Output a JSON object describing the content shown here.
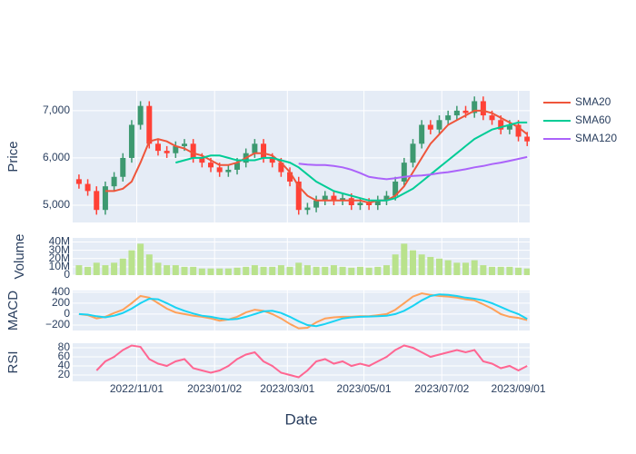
{
  "chart_data": [
    {
      "type": "candlestick",
      "ylabel": "Price",
      "x": [
        "2022-09-16",
        "2022-09-23",
        "2022-09-30",
        "2022-10-07",
        "2022-10-14",
        "2022-10-21",
        "2022-10-28",
        "2022-11-04",
        "2022-11-11",
        "2022-11-18",
        "2022-11-25",
        "2022-12-02",
        "2022-12-09",
        "2022-12-16",
        "2022-12-23",
        "2022-12-30",
        "2023-01-06",
        "2023-01-13",
        "2023-01-20",
        "2023-01-27",
        "2023-02-03",
        "2023-02-10",
        "2023-02-17",
        "2023-02-24",
        "2023-03-03",
        "2023-03-10",
        "2023-03-17",
        "2023-03-24",
        "2023-03-31",
        "2023-04-07",
        "2023-04-14",
        "2023-04-21",
        "2023-04-28",
        "2023-05-05",
        "2023-05-12",
        "2023-05-19",
        "2023-05-26",
        "2023-06-02",
        "2023-06-09",
        "2023-06-16",
        "2023-06-23",
        "2023-06-30",
        "2023-07-07",
        "2023-07-14",
        "2023-07-21",
        "2023-07-28",
        "2023-08-04",
        "2023-08-11",
        "2023-08-18",
        "2023-08-25",
        "2023-09-01",
        "2023-09-08"
      ],
      "open": [
        5550,
        5450,
        5300,
        4900,
        5400,
        5600,
        6000,
        6700,
        7100,
        6300,
        6150,
        6100,
        6250,
        6300,
        6000,
        5900,
        5800,
        5700,
        5750,
        5900,
        6100,
        6300,
        6000,
        5900,
        5700,
        5500,
        4900,
        4950,
        5100,
        5200,
        5100,
        5150,
        5000,
        5050,
        5000,
        5100,
        5200,
        5500,
        5900,
        6300,
        6700,
        6600,
        6800,
        6900,
        7000,
        6950,
        7200,
        6900,
        6800,
        6600,
        6700,
        6450
      ],
      "high": [
        5650,
        5550,
        5400,
        5500,
        5700,
        6100,
        6800,
        7200,
        7200,
        6400,
        6250,
        6350,
        6400,
        6400,
        6100,
        6000,
        5900,
        5850,
        6000,
        6200,
        6400,
        6400,
        6100,
        6000,
        5800,
        5600,
        5050,
        5200,
        5300,
        5300,
        5250,
        5250,
        5150,
        5150,
        5200,
        5300,
        5600,
        6000,
        6400,
        6800,
        6800,
        6900,
        7000,
        7100,
        7100,
        7300,
        7300,
        7000,
        6900,
        6800,
        6800,
        6550
      ],
      "low": [
        5350,
        5200,
        4800,
        4800,
        5300,
        5500,
        5900,
        6600,
        6200,
        6050,
        6000,
        6000,
        6150,
        5900,
        5800,
        5700,
        5600,
        5600,
        5650,
        5800,
        6000,
        5900,
        5800,
        5600,
        5400,
        4800,
        4800,
        4850,
        5000,
        5000,
        5000,
        4900,
        4900,
        4900,
        4900,
        5000,
        5100,
        5400,
        5800,
        6200,
        6500,
        6500,
        6700,
        6800,
        6850,
        6850,
        6800,
        6700,
        6500,
        6500,
        6350,
        6250
      ],
      "close": [
        5450,
        5300,
        4900,
        5400,
        5600,
        6000,
        6700,
        7100,
        6300,
        6150,
        6100,
        6250,
        6300,
        6000,
        5900,
        5800,
        5700,
        5750,
        5900,
        6100,
        6300,
        6000,
        5900,
        5700,
        5500,
        4900,
        4950,
        5100,
        5200,
        5100,
        5150,
        5000,
        5050,
        5000,
        5100,
        5200,
        5500,
        5900,
        6300,
        6700,
        6600,
        6800,
        6900,
        7000,
        6950,
        7200,
        6900,
        6800,
        6600,
        6700,
        6450,
        6350
      ],
      "increasing_color": "#3d9970",
      "decreasing_color": "#ff4136",
      "series": [
        {
          "name": "SMA20",
          "color": "#ef553b",
          "values": [
            null,
            null,
            null,
            5300,
            5300,
            5350,
            5500,
            5900,
            6350,
            6400,
            6350,
            6250,
            6200,
            6100,
            6050,
            5950,
            5850,
            5850,
            5900,
            6000,
            6100,
            6100,
            6050,
            5900,
            5700,
            5400,
            5200,
            5100,
            5100,
            5100,
            5100,
            5100,
            5100,
            5050,
            5100,
            5100,
            5200,
            5400,
            5700,
            6000,
            6300,
            6500,
            6700,
            6800,
            6900,
            7000,
            7000,
            6950,
            6850,
            6750,
            6650,
            6500
          ]
        },
        {
          "name": "SMA60",
          "color": "#00cc96",
          "values": [
            null,
            null,
            null,
            null,
            null,
            null,
            null,
            null,
            null,
            null,
            null,
            5900,
            5950,
            6000,
            6000,
            6050,
            6050,
            6000,
            5950,
            5950,
            5950,
            6000,
            6000,
            5950,
            5900,
            5800,
            5650,
            5500,
            5400,
            5300,
            5250,
            5200,
            5150,
            5100,
            5100,
            5100,
            5150,
            5250,
            5350,
            5500,
            5650,
            5800,
            5950,
            6100,
            6250,
            6400,
            6500,
            6600,
            6650,
            6700,
            6750,
            6750
          ]
        },
        {
          "name": "SMA120",
          "color": "#ab63fa",
          "values": [
            null,
            null,
            null,
            null,
            null,
            null,
            null,
            null,
            null,
            null,
            null,
            null,
            null,
            null,
            null,
            null,
            null,
            null,
            null,
            null,
            null,
            null,
            null,
            null,
            null,
            5880,
            5860,
            5850,
            5850,
            5830,
            5800,
            5750,
            5680,
            5600,
            5570,
            5550,
            5570,
            5600,
            5620,
            5630,
            5650,
            5680,
            5700,
            5730,
            5760,
            5800,
            5830,
            5870,
            5900,
            5940,
            5980,
            6020
          ]
        }
      ],
      "xlim": [
        "2022-09-11",
        "2023-09-10"
      ],
      "ylim": [
        4635,
        7420
      ],
      "yticks": [
        {
          "value": 5000,
          "label": "5,000"
        },
        {
          "value": 6000,
          "label": "6,000"
        },
        {
          "value": 7000,
          "label": "7,000"
        }
      ],
      "grid": true,
      "legend": "right"
    },
    {
      "type": "bar",
      "ylabel": "Volume",
      "color": "#b9e28c",
      "x": [
        "2022-09-16",
        "2022-09-23",
        "2022-09-30",
        "2022-10-07",
        "2022-10-14",
        "2022-10-21",
        "2022-10-28",
        "2022-11-04",
        "2022-11-11",
        "2022-11-18",
        "2022-11-25",
        "2022-12-02",
        "2022-12-09",
        "2022-12-16",
        "2022-12-23",
        "2022-12-30",
        "2023-01-06",
        "2023-01-13",
        "2023-01-20",
        "2023-01-27",
        "2023-02-03",
        "2023-02-10",
        "2023-02-17",
        "2023-02-24",
        "2023-03-03",
        "2023-03-10",
        "2023-03-17",
        "2023-03-24",
        "2023-03-31",
        "2023-04-07",
        "2023-04-14",
        "2023-04-21",
        "2023-04-28",
        "2023-05-05",
        "2023-05-12",
        "2023-05-19",
        "2023-05-26",
        "2023-06-02",
        "2023-06-09",
        "2023-06-16",
        "2023-06-23",
        "2023-06-30",
        "2023-07-07",
        "2023-07-14",
        "2023-07-21",
        "2023-07-28",
        "2023-08-04",
        "2023-08-11",
        "2023-08-18",
        "2023-08-25",
        "2023-09-01",
        "2023-09-08"
      ],
      "values": [
        12000000,
        10000000,
        15000000,
        12000000,
        15000000,
        20000000,
        30000000,
        38000000,
        25000000,
        15000000,
        12000000,
        12000000,
        10000000,
        10000000,
        8000000,
        8000000,
        8000000,
        8000000,
        9000000,
        10000000,
        12000000,
        10000000,
        10000000,
        12000000,
        10000000,
        15000000,
        12000000,
        10000000,
        10000000,
        12000000,
        10000000,
        9000000,
        10000000,
        9000000,
        10000000,
        12000000,
        25000000,
        38000000,
        30000000,
        25000000,
        22000000,
        20000000,
        18000000,
        15000000,
        15000000,
        18000000,
        12000000,
        10000000,
        10000000,
        10000000,
        9000000,
        8000000
      ],
      "xlim": [
        "2022-09-11",
        "2023-09-10"
      ],
      "ylim": [
        0,
        45000000
      ],
      "yticks": [
        0,
        {
          "value": 10000000,
          "label": "10M"
        },
        {
          "value": 20000000,
          "label": "20M"
        },
        {
          "value": 30000000,
          "label": "30M"
        },
        {
          "value": 40000000,
          "label": "40M"
        }
      ],
      "grid": true
    },
    {
      "type": "line",
      "ylabel": "MACD",
      "x": [
        "2022-09-16",
        "2022-09-23",
        "2022-09-30",
        "2022-10-07",
        "2022-10-14",
        "2022-10-21",
        "2022-10-28",
        "2022-11-04",
        "2022-11-11",
        "2022-11-18",
        "2022-11-25",
        "2022-12-02",
        "2022-12-09",
        "2022-12-16",
        "2022-12-23",
        "2022-12-30",
        "2023-01-06",
        "2023-01-13",
        "2023-01-20",
        "2023-01-27",
        "2023-02-03",
        "2023-02-10",
        "2023-02-17",
        "2023-02-24",
        "2023-03-03",
        "2023-03-10",
        "2023-03-17",
        "2023-03-24",
        "2023-03-31",
        "2023-04-07",
        "2023-04-14",
        "2023-04-21",
        "2023-04-28",
        "2023-05-05",
        "2023-05-12",
        "2023-05-19",
        "2023-05-26",
        "2023-06-02",
        "2023-06-09",
        "2023-06-16",
        "2023-06-23",
        "2023-06-30",
        "2023-07-07",
        "2023-07-14",
        "2023-07-21",
        "2023-07-28",
        "2023-08-04",
        "2023-08-11",
        "2023-08-18",
        "2023-08-25",
        "2023-09-01",
        "2023-09-08"
      ],
      "series": [
        {
          "color": "#ffa15a",
          "values": [
            0,
            -20,
            -80,
            -50,
            20,
            80,
            200,
            330,
            300,
            200,
            100,
            30,
            0,
            -30,
            -50,
            -80,
            -120,
            -100,
            -50,
            30,
            80,
            60,
            0,
            -80,
            -180,
            -260,
            -250,
            -150,
            -80,
            -60,
            -50,
            -50,
            -40,
            -40,
            -20,
            0,
            80,
            200,
            320,
            380,
            350,
            330,
            320,
            300,
            270,
            250,
            180,
            100,
            0,
            -50,
            -70,
            -110
          ]
        },
        {
          "color": "#19d3f3",
          "values": [
            0,
            -10,
            -40,
            -60,
            -30,
            20,
            100,
            200,
            280,
            270,
            200,
            120,
            60,
            10,
            -30,
            -50,
            -80,
            -100,
            -90,
            -50,
            0,
            50,
            60,
            20,
            -50,
            -130,
            -200,
            -220,
            -180,
            -130,
            -80,
            -60,
            -50,
            -45,
            -40,
            -30,
            0,
            60,
            150,
            250,
            330,
            360,
            350,
            330,
            300,
            280,
            250,
            200,
            130,
            60,
            0,
            -90
          ]
        }
      ],
      "xlim": [
        "2022-09-11",
        "2023-09-10"
      ],
      "ylim": [
        -300,
        430
      ],
      "yticks": [
        {
          "value": -200,
          "label": "−200"
        },
        0,
        200,
        400
      ],
      "grid": true
    },
    {
      "type": "line",
      "ylabel": "RSI",
      "xlabel": "Date",
      "x": [
        "2022-09-16",
        "2022-09-23",
        "2022-09-30",
        "2022-10-07",
        "2022-10-14",
        "2022-10-21",
        "2022-10-28",
        "2022-11-04",
        "2022-11-11",
        "2022-11-18",
        "2022-11-25",
        "2022-12-02",
        "2022-12-09",
        "2022-12-16",
        "2022-12-23",
        "2022-12-30",
        "2023-01-06",
        "2023-01-13",
        "2023-01-20",
        "2023-01-27",
        "2023-02-03",
        "2023-02-10",
        "2023-02-17",
        "2023-02-24",
        "2023-03-03",
        "2023-03-10",
        "2023-03-17",
        "2023-03-24",
        "2023-03-31",
        "2023-04-07",
        "2023-04-14",
        "2023-04-21",
        "2023-04-28",
        "2023-05-05",
        "2023-05-12",
        "2023-05-19",
        "2023-05-26",
        "2023-06-02",
        "2023-06-09",
        "2023-06-16",
        "2023-06-23",
        "2023-06-30",
        "2023-07-07",
        "2023-07-14",
        "2023-07-21",
        "2023-07-28",
        "2023-08-04",
        "2023-08-11",
        "2023-08-18",
        "2023-08-25",
        "2023-09-01",
        "2023-09-08"
      ],
      "series": [
        {
          "color": "#ff6692",
          "values": [
            null,
            null,
            30,
            50,
            60,
            75,
            85,
            82,
            55,
            45,
            40,
            50,
            55,
            35,
            30,
            25,
            30,
            40,
            55,
            65,
            70,
            50,
            40,
            25,
            20,
            15,
            30,
            50,
            55,
            45,
            50,
            40,
            45,
            40,
            50,
            60,
            75,
            85,
            80,
            70,
            60,
            65,
            70,
            75,
            70,
            75,
            50,
            45,
            35,
            40,
            30,
            40
          ]
        }
      ],
      "xlim": [
        "2022-09-11",
        "2023-09-10"
      ],
      "ylim": [
        6,
        90
      ],
      "yticks": [
        20,
        40,
        60,
        80
      ],
      "xticks": [
        {
          "value": "2022-11-01",
          "label": "2022/11/01"
        },
        {
          "value": "2023-01-02",
          "label": "2023/01/02"
        },
        {
          "value": "2023-03-01",
          "label": "2023/03/01"
        },
        {
          "value": "2023-05-01",
          "label": "2023/05/01"
        },
        {
          "value": "2023-07-02",
          "label": "2023/07/02"
        },
        {
          "value": "2023-09-01",
          "label": "2023/09/01"
        }
      ],
      "grid": true
    }
  ]
}
